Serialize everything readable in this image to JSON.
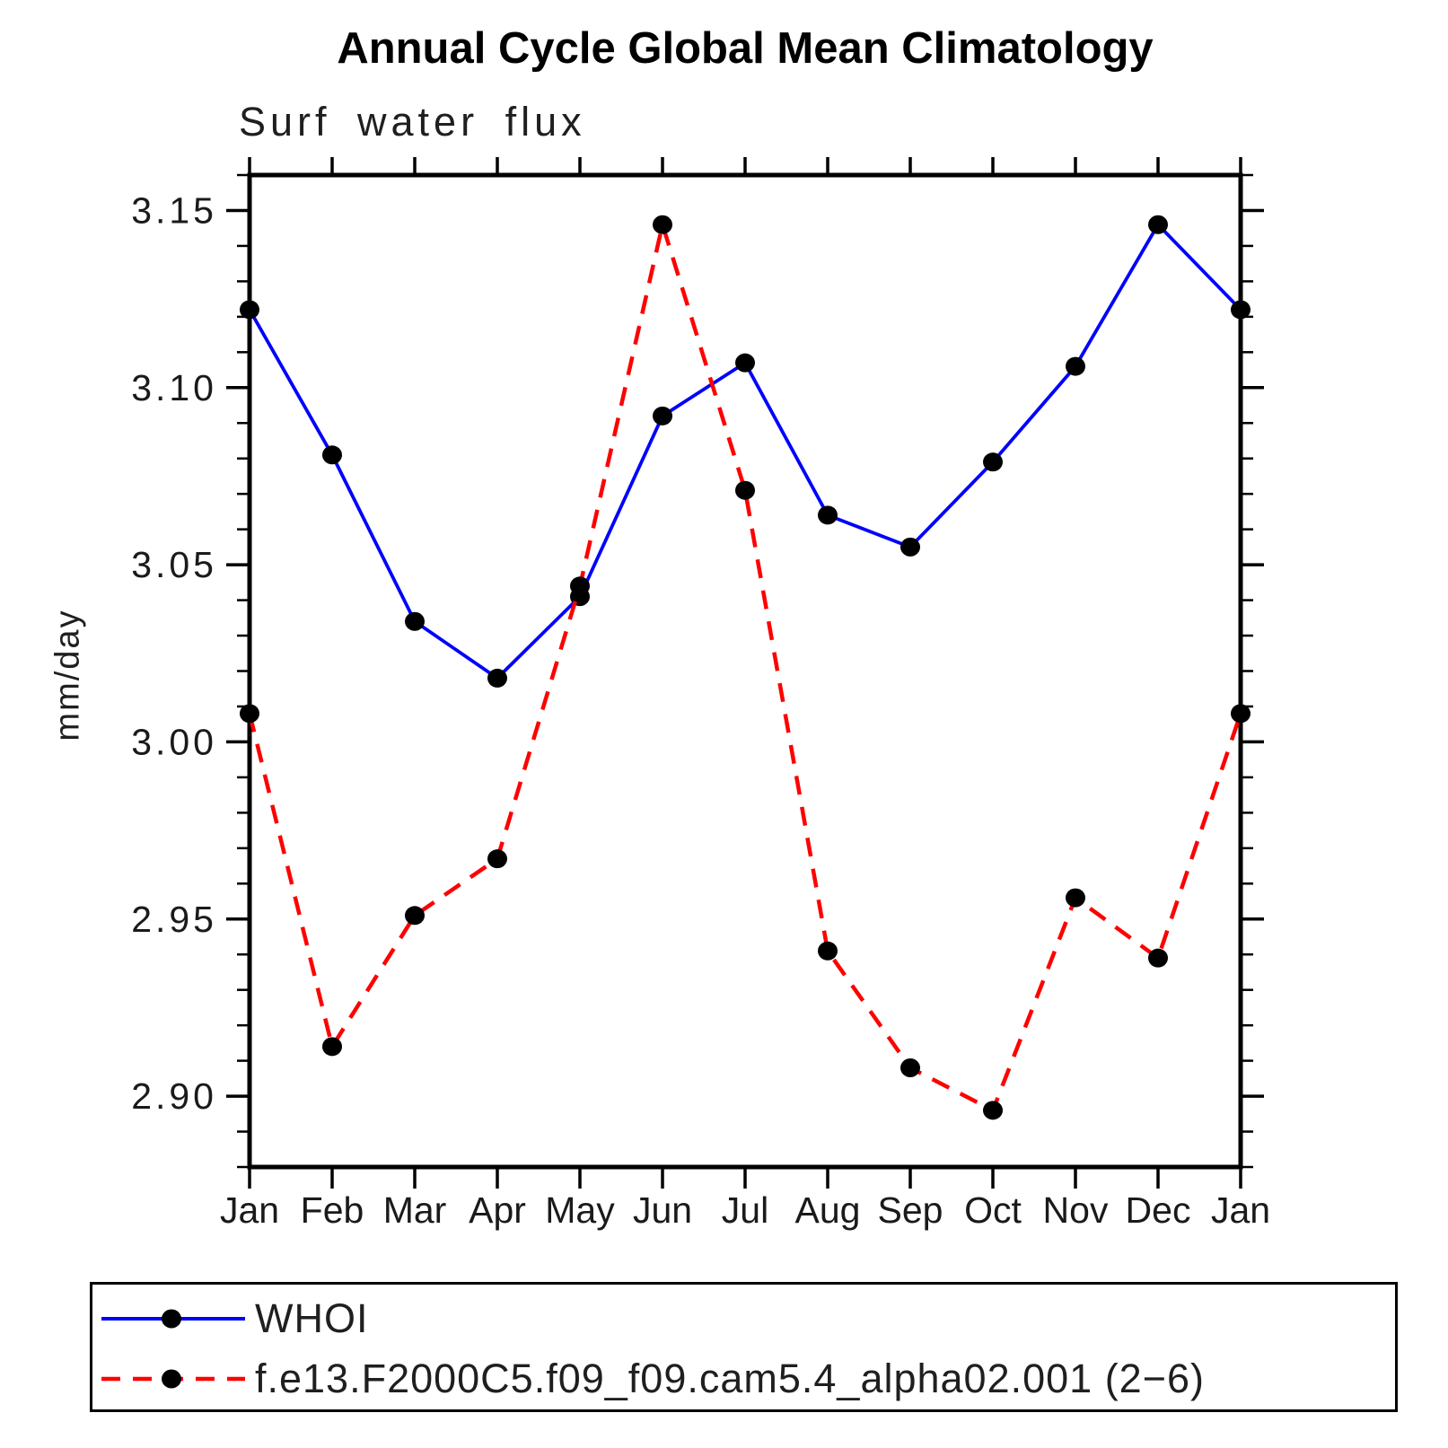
{
  "chart_data": {
    "type": "line",
    "title": "Annual Cycle Global Mean Climatology",
    "subtitle": "Surf water flux",
    "ylabel": "mm/day",
    "x_categories": [
      "Jan",
      "Feb",
      "Mar",
      "Apr",
      "May",
      "Jun",
      "Jul",
      "Aug",
      "Sep",
      "Oct",
      "Nov",
      "Dec",
      "Jan"
    ],
    "ylim": [
      2.88,
      3.16
    ],
    "ytick_major": [
      2.9,
      2.95,
      3.0,
      3.05,
      3.1,
      3.15
    ],
    "ytick_labels": [
      "2.90",
      "2.95",
      "3.00",
      "3.05",
      "3.10",
      "3.15"
    ],
    "ytick_minor_step": 0.01,
    "grid": false,
    "legend_position": "bottom",
    "axis_color": "#000000",
    "series": [
      {
        "name": "WHOI",
        "color": "#0000ff",
        "style": "solid",
        "marker": "circle",
        "marker_color": "#000000",
        "values": [
          3.122,
          3.081,
          3.034,
          3.018,
          3.041,
          3.092,
          3.107,
          3.064,
          3.055,
          3.079,
          3.106,
          3.146,
          3.122
        ]
      },
      {
        "name": "f.e13.F2000C5.f09_f09.cam5.4_alpha02.001 (2−6)",
        "color": "#ff0000",
        "style": "dashed",
        "marker": "circle",
        "marker_color": "#000000",
        "values": [
          3.008,
          2.914,
          2.951,
          2.967,
          3.044,
          3.146,
          3.071,
          2.941,
          2.908,
          2.896,
          2.956,
          2.939,
          3.008
        ]
      }
    ]
  }
}
